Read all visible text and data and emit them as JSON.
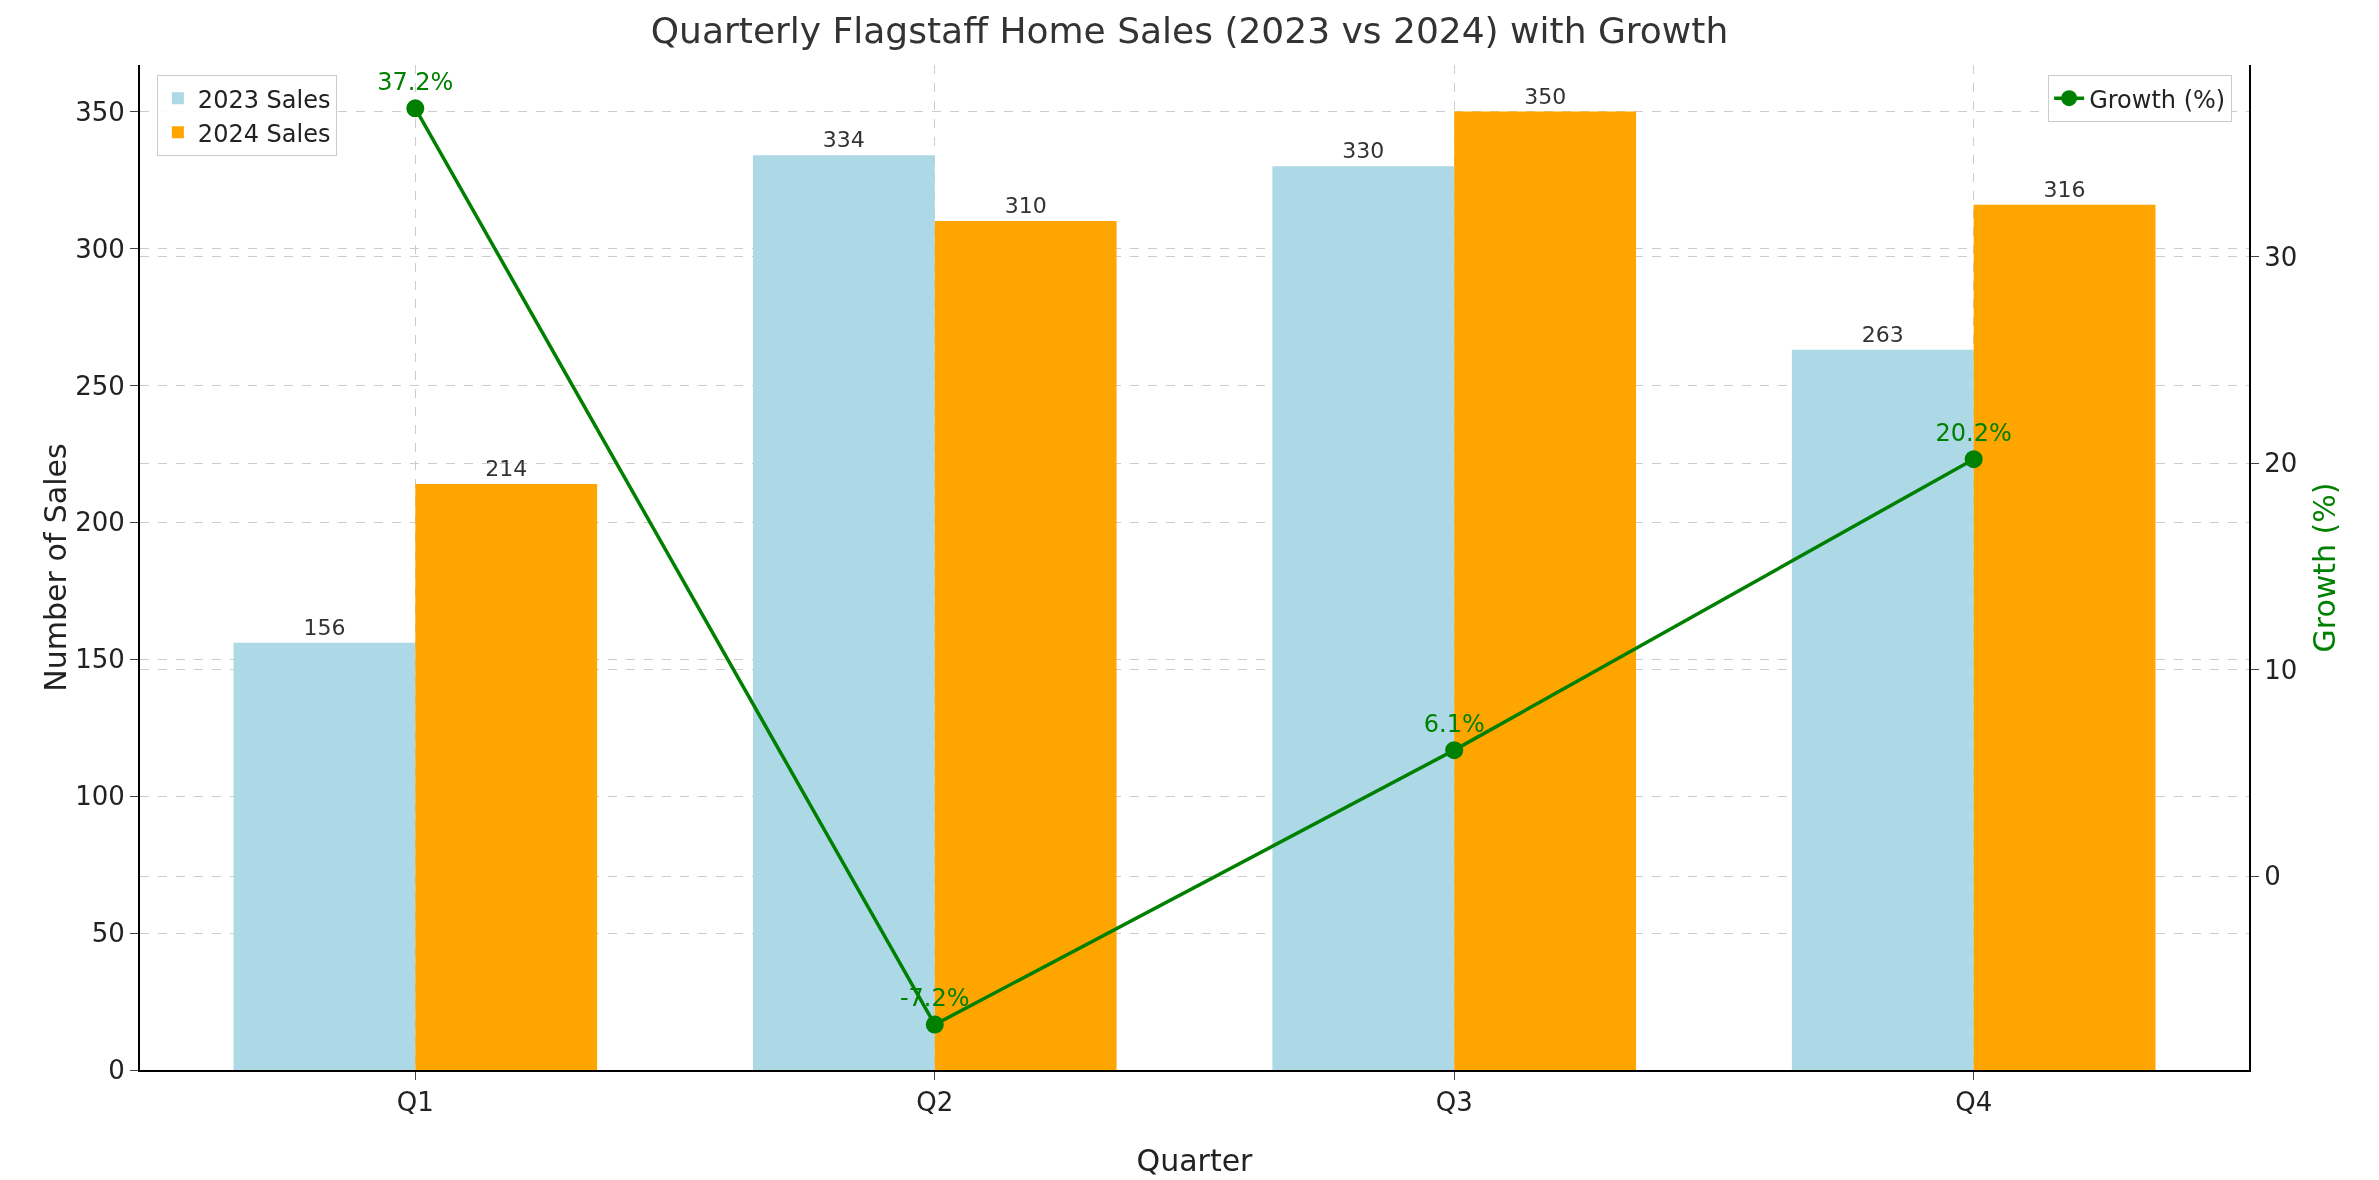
{
  "chart_data": {
    "type": "bar",
    "title": "Quarterly Flagstaff Home Sales (2023 vs 2024) with Growth",
    "xlabel": "Quarter",
    "ylabel": "Number of Sales",
    "y2label": "Growth (%)",
    "categories": [
      "Q1",
      "Q2",
      "Q3",
      "Q4"
    ],
    "series": [
      {
        "name": "2023 Sales",
        "color": "#add8e6",
        "values": [
          156,
          334,
          330,
          263
        ],
        "value_labels": [
          "156",
          "334",
          "330",
          "263"
        ]
      },
      {
        "name": "2024 Sales",
        "color": "#ffa500",
        "values": [
          214,
          310,
          350,
          316
        ],
        "value_labels": [
          "214",
          "310",
          "350",
          "316"
        ]
      },
      {
        "name": "Growth (%)",
        "type": "line",
        "axis": "y2",
        "color": "#008000",
        "values": [
          37.2,
          -7.2,
          6.1,
          20.2
        ],
        "value_labels": [
          "37.2%",
          "-7.2%",
          "6.1%",
          "20.2%"
        ],
        "marker": "circle",
        "line_style": "solid"
      }
    ],
    "ylim": [
      0,
      367
    ],
    "yticks": [
      0,
      50,
      100,
      150,
      200,
      250,
      300,
      350
    ],
    "y2lim": [
      -9.4,
      39.3
    ],
    "y2ticks": [
      0,
      10,
      20,
      30
    ],
    "grid": true,
    "legend": "top left"
  }
}
